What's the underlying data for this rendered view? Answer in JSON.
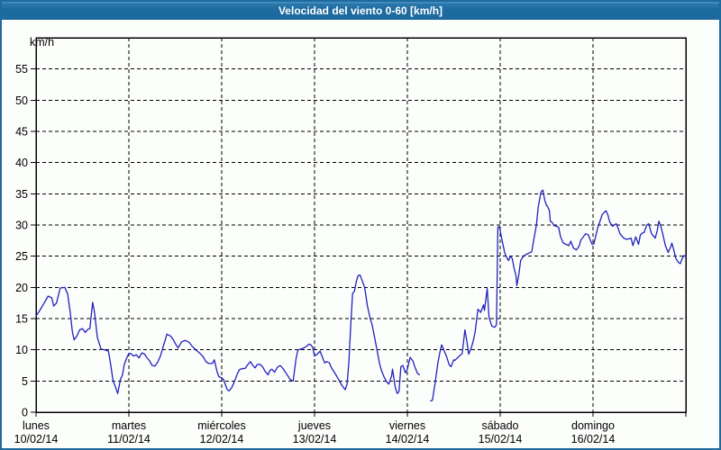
{
  "window": {
    "title": "Velocidad del viento 0-60 [km/h]",
    "title_bar_color": "#1d6a9e",
    "title_text_color": "#ffffff",
    "border_color": "#1d6a9e",
    "plot_background": "#fcfefb"
  },
  "chart_data": {
    "type": "line",
    "title": "Velocidad del viento 0-60 [km/h]",
    "ylabel": "km/h",
    "xlabel": "",
    "ylim": [
      0,
      60
    ],
    "yticks": [
      0,
      5,
      10,
      15,
      20,
      25,
      30,
      35,
      40,
      45,
      50,
      55
    ],
    "grid": "dashed-black",
    "legend_position": "none",
    "axis_color": "#000000",
    "x_axis": {
      "unit": "days",
      "range_days": [
        0,
        7
      ],
      "days": [
        {
          "name": "lunes",
          "date": "10/02/14"
        },
        {
          "name": "martes",
          "date": "11/02/14"
        },
        {
          "name": "miércoles",
          "date": "12/02/14"
        },
        {
          "name": "jueves",
          "date": "13/02/14"
        },
        {
          "name": "viernes",
          "date": "14/02/14"
        },
        {
          "name": "sábado",
          "date": "15/02/14"
        },
        {
          "name": "domingo",
          "date": "16/02/14"
        }
      ]
    },
    "series": [
      {
        "name": "Velocidad del viento",
        "unit": "km/h",
        "color": "#2121bd",
        "note": "x = days since Monday 10/02/14 00:00; gap in data Friday early morning",
        "segments": [
          [
            [
              0.0,
              15.4
            ],
            [
              0.04,
              16.3
            ],
            [
              0.08,
              17.3
            ],
            [
              0.13,
              18.6
            ],
            [
              0.17,
              18.3
            ],
            [
              0.19,
              17.0
            ],
            [
              0.22,
              17.5
            ],
            [
              0.26,
              19.9
            ],
            [
              0.31,
              20.0
            ],
            [
              0.34,
              19.0
            ],
            [
              0.37,
              15.8
            ],
            [
              0.39,
              13.0
            ],
            [
              0.41,
              11.6
            ],
            [
              0.44,
              12.2
            ],
            [
              0.47,
              13.2
            ],
            [
              0.5,
              13.4
            ],
            [
              0.53,
              12.8
            ],
            [
              0.56,
              13.3
            ],
            [
              0.58,
              13.4
            ],
            [
              0.61,
              17.6
            ],
            [
              0.63,
              16.0
            ],
            [
              0.66,
              12.0
            ],
            [
              0.7,
              10.1
            ],
            [
              0.74,
              10.0
            ],
            [
              0.78,
              9.8
            ],
            [
              0.8,
              8.0
            ],
            [
              0.83,
              5.0
            ],
            [
              0.85,
              4.3
            ],
            [
              0.88,
              3.0
            ],
            [
              0.91,
              5.3
            ],
            [
              0.93,
              5.9
            ],
            [
              0.95,
              7.6
            ],
            [
              0.98,
              8.8
            ],
            [
              1.0,
              9.4
            ],
            [
              1.02,
              9.4
            ],
            [
              1.05,
              9.0
            ],
            [
              1.08,
              9.2
            ],
            [
              1.11,
              8.7
            ],
            [
              1.14,
              9.5
            ],
            [
              1.17,
              9.3
            ],
            [
              1.19,
              8.8
            ],
            [
              1.22,
              8.3
            ],
            [
              1.25,
              7.5
            ],
            [
              1.28,
              7.4
            ],
            [
              1.31,
              8.0
            ],
            [
              1.34,
              9.0
            ],
            [
              1.37,
              10.5
            ],
            [
              1.41,
              12.5
            ],
            [
              1.45,
              12.2
            ],
            [
              1.48,
              11.6
            ],
            [
              1.5,
              11.0
            ],
            [
              1.53,
              10.3
            ],
            [
              1.57,
              11.3
            ],
            [
              1.61,
              11.5
            ],
            [
              1.65,
              11.2
            ],
            [
              1.68,
              10.6
            ],
            [
              1.72,
              10.0
            ],
            [
              1.76,
              9.5
            ],
            [
              1.8,
              8.9
            ],
            [
              1.83,
              8.1
            ],
            [
              1.86,
              7.8
            ],
            [
              1.9,
              7.8
            ],
            [
              1.92,
              8.4
            ],
            [
              1.95,
              6.5
            ],
            [
              1.97,
              5.7
            ],
            [
              2.0,
              5.5
            ],
            [
              2.02,
              5.2
            ],
            [
              2.04,
              4.4
            ],
            [
              2.06,
              3.6
            ],
            [
              2.08,
              3.4
            ],
            [
              2.11,
              4.0
            ],
            [
              2.14,
              5.0
            ],
            [
              2.17,
              6.2
            ],
            [
              2.19,
              6.8
            ],
            [
              2.22,
              7.0
            ],
            [
              2.25,
              7.0
            ],
            [
              2.28,
              7.6
            ],
            [
              2.31,
              8.1
            ],
            [
              2.34,
              7.4
            ],
            [
              2.36,
              7.1
            ],
            [
              2.38,
              7.6
            ],
            [
              2.41,
              7.7
            ],
            [
              2.44,
              7.3
            ],
            [
              2.47,
              6.5
            ],
            [
              2.5,
              6.0
            ],
            [
              2.52,
              6.7
            ],
            [
              2.54,
              6.9
            ],
            [
              2.57,
              6.4
            ],
            [
              2.6,
              7.2
            ],
            [
              2.63,
              7.5
            ],
            [
              2.66,
              7.0
            ],
            [
              2.7,
              6.1
            ],
            [
              2.74,
              5.2
            ],
            [
              2.77,
              5.0
            ],
            [
              2.8,
              8.5
            ],
            [
              2.82,
              10.0
            ],
            [
              2.85,
              10.1
            ],
            [
              2.87,
              10.2
            ],
            [
              2.91,
              10.5
            ],
            [
              2.94,
              10.9
            ],
            [
              2.96,
              10.8
            ],
            [
              2.98,
              10.4
            ],
            [
              3.0,
              9.0
            ],
            [
              3.03,
              9.3
            ],
            [
              3.06,
              9.8
            ],
            [
              3.09,
              8.6
            ],
            [
              3.11,
              7.9
            ],
            [
              3.13,
              8.1
            ],
            [
              3.16,
              7.9
            ],
            [
              3.18,
              7.2
            ],
            [
              3.2,
              6.7
            ],
            [
              3.23,
              6.0
            ],
            [
              3.26,
              5.2
            ],
            [
              3.29,
              4.4
            ],
            [
              3.33,
              3.6
            ],
            [
              3.35,
              4.5
            ],
            [
              3.37,
              8.0
            ],
            [
              3.39,
              14.0
            ],
            [
              3.41,
              19.0
            ],
            [
              3.43,
              19.4
            ],
            [
              3.45,
              21.0
            ],
            [
              3.47,
              21.9
            ],
            [
              3.49,
              22.0
            ],
            [
              3.5,
              21.6
            ],
            [
              3.52,
              20.8
            ],
            [
              3.54,
              20.0
            ],
            [
              3.57,
              17.0
            ],
            [
              3.6,
              15.0
            ],
            [
              3.62,
              14.0
            ],
            [
              3.65,
              11.8
            ],
            [
              3.67,
              10.2
            ],
            [
              3.7,
              7.8
            ],
            [
              3.72,
              6.7
            ],
            [
              3.75,
              5.6
            ],
            [
              3.78,
              4.8
            ],
            [
              3.8,
              4.5
            ],
            [
              3.83,
              5.8
            ],
            [
              3.84,
              6.9
            ],
            [
              3.87,
              4.0
            ],
            [
              3.89,
              3.0
            ],
            [
              3.91,
              3.3
            ],
            [
              3.93,
              7.3
            ],
            [
              3.95,
              7.5
            ],
            [
              3.98,
              6.3
            ],
            [
              4.0,
              6.9
            ],
            [
              4.03,
              8.8
            ],
            [
              4.06,
              8.2
            ],
            [
              4.08,
              7.3
            ],
            [
              4.11,
              6.2
            ],
            [
              4.13,
              6.0
            ]
          ],
          [
            [
              4.25,
              1.8
            ],
            [
              4.27,
              1.9
            ],
            [
              4.3,
              4.8
            ],
            [
              4.33,
              8.0
            ],
            [
              4.35,
              9.6
            ],
            [
              4.37,
              10.8
            ],
            [
              4.4,
              9.7
            ],
            [
              4.42,
              9.0
            ],
            [
              4.45,
              7.6
            ],
            [
              4.47,
              7.3
            ],
            [
              4.5,
              8.4
            ],
            [
              4.51,
              8.3
            ],
            [
              4.54,
              8.7
            ],
            [
              4.56,
              9.0
            ],
            [
              4.59,
              9.4
            ],
            [
              4.62,
              13.2
            ],
            [
              4.64,
              11.5
            ],
            [
              4.66,
              9.3
            ],
            [
              4.69,
              10.4
            ],
            [
              4.71,
              11.4
            ],
            [
              4.73,
              12.9
            ],
            [
              4.76,
              16.5
            ],
            [
              4.79,
              16.0
            ],
            [
              4.82,
              17.2
            ],
            [
              4.83,
              16.3
            ],
            [
              4.86,
              19.8
            ],
            [
              4.88,
              15.2
            ],
            [
              4.91,
              13.8
            ],
            [
              4.94,
              13.6
            ],
            [
              4.96,
              14.0
            ],
            [
              4.975,
              29.6
            ],
            [
              4.99,
              29.8
            ],
            [
              5.02,
              27.5
            ],
            [
              5.05,
              25.5
            ],
            [
              5.07,
              24.8
            ],
            [
              5.09,
              24.3
            ],
            [
              5.11,
              25.0
            ],
            [
              5.13,
              24.6
            ],
            [
              5.15,
              23.0
            ],
            [
              5.17,
              21.9
            ],
            [
              5.18,
              20.3
            ],
            [
              5.2,
              22.0
            ],
            [
              5.22,
              24.3
            ],
            [
              5.25,
              25.0
            ],
            [
              5.28,
              25.3
            ],
            [
              5.31,
              25.5
            ],
            [
              5.34,
              25.7
            ],
            [
              5.36,
              27.5
            ],
            [
              5.39,
              30.0
            ],
            [
              5.41,
              32.9
            ],
            [
              5.44,
              35.3
            ],
            [
              5.46,
              35.6
            ],
            [
              5.48,
              34.0
            ],
            [
              5.5,
              33.1
            ],
            [
              5.51,
              33.0
            ],
            [
              5.53,
              32.3
            ],
            [
              5.54,
              30.6
            ],
            [
              5.56,
              30.4
            ],
            [
              5.58,
              29.9
            ],
            [
              5.61,
              29.8
            ],
            [
              5.63,
              29.6
            ],
            [
              5.65,
              28.1
            ],
            [
              5.68,
              27.1
            ],
            [
              5.71,
              26.9
            ],
            [
              5.74,
              26.7
            ],
            [
              5.76,
              27.4
            ],
            [
              5.79,
              26.3
            ],
            [
              5.82,
              26.0
            ],
            [
              5.85,
              26.6
            ],
            [
              5.87,
              27.6
            ],
            [
              5.9,
              28.2
            ],
            [
              5.92,
              28.6
            ],
            [
              5.95,
              28.4
            ],
            [
              5.97,
              27.6
            ],
            [
              5.99,
              26.9
            ],
            [
              6.01,
              27.0
            ],
            [
              6.03,
              28.3
            ],
            [
              6.05,
              29.5
            ],
            [
              6.08,
              30.8
            ],
            [
              6.1,
              31.7
            ],
            [
              6.12,
              32.0
            ],
            [
              6.14,
              32.3
            ],
            [
              6.16,
              31.6
            ],
            [
              6.18,
              30.5
            ],
            [
              6.21,
              29.8
            ],
            [
              6.23,
              30.0
            ],
            [
              6.25,
              30.2
            ],
            [
              6.27,
              29.5
            ],
            [
              6.29,
              28.6
            ],
            [
              6.33,
              27.9
            ],
            [
              6.36,
              27.7
            ],
            [
              6.39,
              27.8
            ],
            [
              6.41,
              27.9
            ],
            [
              6.43,
              26.7
            ],
            [
              6.46,
              28.1
            ],
            [
              6.49,
              26.9
            ],
            [
              6.51,
              28.4
            ],
            [
              6.53,
              28.7
            ],
            [
              6.55,
              28.8
            ],
            [
              6.58,
              30.0
            ],
            [
              6.6,
              30.2
            ],
            [
              6.63,
              28.6
            ],
            [
              6.67,
              27.9
            ],
            [
              6.69,
              29.0
            ],
            [
              6.71,
              30.6
            ],
            [
              6.73,
              29.8
            ],
            [
              6.75,
              28.6
            ],
            [
              6.78,
              26.7
            ],
            [
              6.81,
              25.6
            ],
            [
              6.84,
              26.6
            ],
            [
              6.85,
              27.1
            ],
            [
              6.87,
              26.0
            ],
            [
              6.89,
              24.7
            ],
            [
              6.92,
              24.0
            ],
            [
              6.94,
              23.8
            ],
            [
              6.96,
              24.6
            ],
            [
              6.98,
              25.1
            ],
            [
              7.0,
              25.0
            ]
          ]
        ]
      }
    ]
  }
}
